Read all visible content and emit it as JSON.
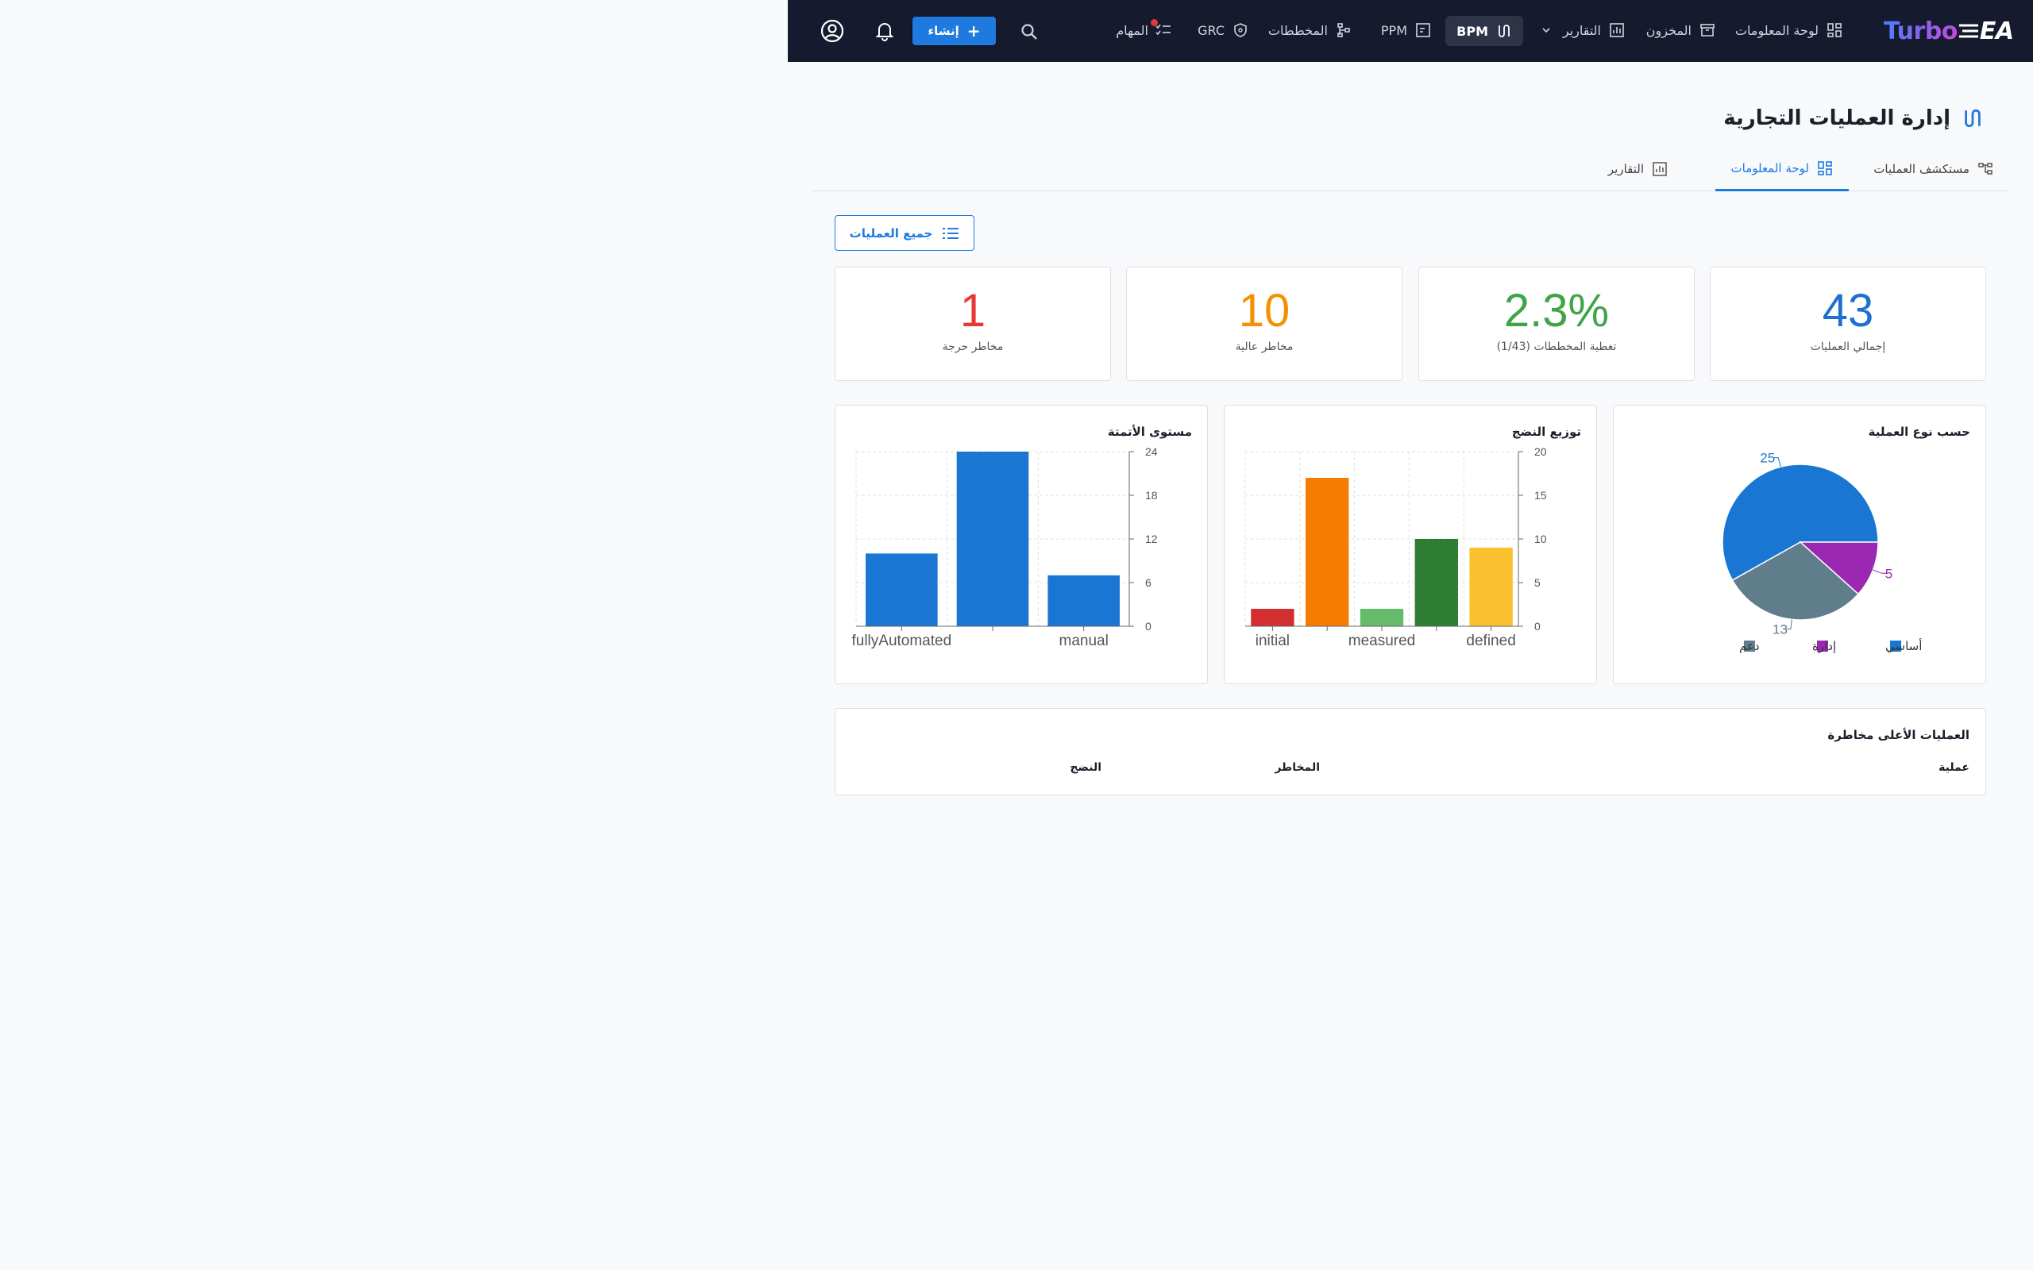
{
  "nav": {
    "logo_turbo": "Turbo",
    "logo_ea": "EA",
    "items": [
      {
        "label": "لوحة المعلومات"
      },
      {
        "label": "المخزون"
      },
      {
        "label": "التقارير"
      },
      {
        "label": "BPM"
      },
      {
        "label": "PPM"
      },
      {
        "label": "المخططات"
      },
      {
        "label": "GRC"
      },
      {
        "label": "المهام"
      }
    ],
    "create_label": "إنشاء",
    "create_plus": "+"
  },
  "page": {
    "title": "إدارة العمليات التجارية",
    "tabs": [
      {
        "label": "مستكشف العمليات"
      },
      {
        "label": "لوحة المعلومات"
      },
      {
        "label": "التقارير"
      }
    ],
    "all_processes_button": "جميع العمليات"
  },
  "kpis": [
    {
      "value": "43",
      "label": "إجمالي العمليات",
      "color": "#1f6fd1"
    },
    {
      "value": "2.3%",
      "label": "تغطية المخططات (1/43)",
      "color": "#3ea447"
    },
    {
      "value": "10",
      "label": "مخاطر عالية",
      "color": "#f39200"
    },
    {
      "value": "1",
      "label": "مخاطر حرجة",
      "color": "#e53935"
    }
  ],
  "charts": {
    "by_type_title": "حسب نوع العملية",
    "maturity_title": "توزيع النضج",
    "automation_title": "مستوى الأتمتة"
  },
  "chart_data": [
    {
      "type": "pie",
      "title": "حسب نوع العملية",
      "categories": [
        "أساسي",
        "إدارة",
        "دعم"
      ],
      "values": [
        25,
        5,
        13
      ],
      "colors": [
        "#1976d2",
        "#9c27b0",
        "#607d8b"
      ],
      "value_labels": [
        "25",
        "5",
        "13"
      ],
      "legend": "bottom"
    },
    {
      "type": "bar",
      "title": "توزيع النضج",
      "categories": [
        "initial",
        "",
        "measured",
        "",
        "defined"
      ],
      "values": [
        2,
        17,
        2,
        10,
        9
      ],
      "colors": [
        "#d32f2f",
        "#f57c00",
        "#66bb6a",
        "#2e7d32",
        "#fbc02d"
      ],
      "yticks": [
        0,
        5,
        10,
        15,
        20
      ],
      "ylim": [
        0,
        20
      ],
      "grid": true
    },
    {
      "type": "bar",
      "title": "مستوى الأتمتة",
      "categories": [
        "fullyAutomated",
        "",
        "manual"
      ],
      "values": [
        10,
        24,
        7
      ],
      "colors": [
        "#1976d2",
        "#1976d2",
        "#1976d2"
      ],
      "yticks": [
        0,
        6,
        12,
        18,
        24
      ],
      "ylim": [
        0,
        24
      ],
      "grid": true
    }
  ],
  "table": {
    "title": "العمليات الأعلى مخاطرة",
    "columns": [
      "عملية",
      "المخاطر",
      "النضج"
    ]
  }
}
